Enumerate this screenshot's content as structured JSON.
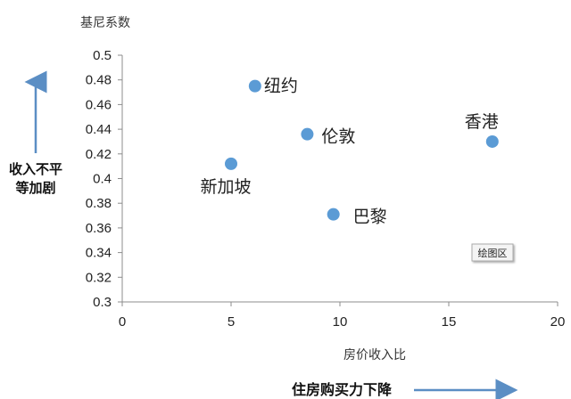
{
  "chart_data": {
    "type": "scatter",
    "title": "",
    "ylabel": "基尼系数",
    "xlabel": "房价收入比",
    "xlim": [
      0,
      20
    ],
    "ylim": [
      0.3,
      0.5
    ],
    "xticks": [
      "0",
      "5",
      "10",
      "15",
      "20"
    ],
    "yticks": [
      "0.3",
      "0.32",
      "0.34",
      "0.36",
      "0.38",
      "0.4",
      "0.42",
      "0.44",
      "0.46",
      "0.48",
      "0.5"
    ],
    "grid": false,
    "color": "#5b9bd5",
    "points": [
      {
        "label": "纽约",
        "x": 6.1,
        "y": 0.475
      },
      {
        "label": "伦敦",
        "x": 8.5,
        "y": 0.436
      },
      {
        "label": "香港",
        "x": 17.0,
        "y": 0.43
      },
      {
        "label": "新加坡",
        "x": 5.0,
        "y": 0.412
      },
      {
        "label": "巴黎",
        "x": 9.7,
        "y": 0.371
      }
    ]
  },
  "annotations": {
    "side_note_line1": "收入不平",
    "side_note_line2": "等加剧",
    "bottom_note": "住房购买力下降",
    "plot_area_tag": "绘图区"
  }
}
